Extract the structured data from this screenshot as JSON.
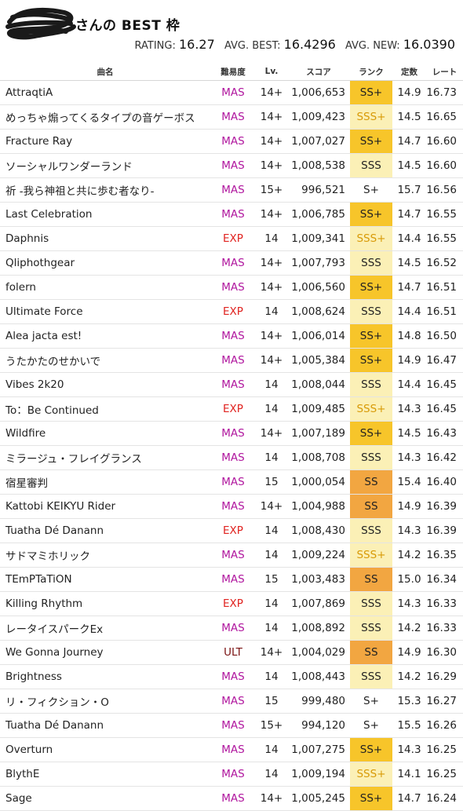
{
  "header": {
    "title": "さんの BEST 枠",
    "rating_label": "RATING:",
    "rating_value": "16.27",
    "avg_best_label": "AVG. BEST:",
    "avg_best_value": "16.4296",
    "avg_new_label": "AVG. NEW:",
    "avg_new_value": "16.0390"
  },
  "table": {
    "columns": [
      "曲名",
      "難易度",
      "Lv.",
      "スコア",
      "ランク",
      "定数",
      "レート"
    ],
    "rows": [
      {
        "name": "AttraqtiA",
        "diff": "MAS",
        "lv": "14+",
        "score": "1,006,653",
        "rank": "SS+",
        "const": "14.9",
        "rate": "16.73"
      },
      {
        "name": "めっちゃ煽ってくるタイプの音ゲーボス",
        "diff": "MAS",
        "lv": "14+",
        "score": "1,009,423",
        "rank": "SSS+",
        "const": "14.5",
        "rate": "16.65"
      },
      {
        "name": "Fracture Ray",
        "diff": "MAS",
        "lv": "14+",
        "score": "1,007,027",
        "rank": "SS+",
        "const": "14.7",
        "rate": "16.60"
      },
      {
        "name": "ソーシャルワンダーランド",
        "diff": "MAS",
        "lv": "14+",
        "score": "1,008,538",
        "rank": "SSS",
        "const": "14.5",
        "rate": "16.60"
      },
      {
        "name": "祈 -我ら神祖と共に歩む者なり-",
        "diff": "MAS",
        "lv": "15+",
        "score": "996,521",
        "rank": "S+",
        "const": "15.7",
        "rate": "16.56"
      },
      {
        "name": "Last Celebration",
        "diff": "MAS",
        "lv": "14+",
        "score": "1,006,785",
        "rank": "SS+",
        "const": "14.7",
        "rate": "16.55"
      },
      {
        "name": "Daphnis",
        "diff": "EXP",
        "lv": "14",
        "score": "1,009,341",
        "rank": "SSS+",
        "const": "14.4",
        "rate": "16.55"
      },
      {
        "name": "Qliphothgear",
        "diff": "MAS",
        "lv": "14+",
        "score": "1,007,793",
        "rank": "SSS",
        "const": "14.5",
        "rate": "16.52"
      },
      {
        "name": "folern",
        "diff": "MAS",
        "lv": "14+",
        "score": "1,006,560",
        "rank": "SS+",
        "const": "14.7",
        "rate": "16.51"
      },
      {
        "name": "Ultimate Force",
        "diff": "EXP",
        "lv": "14",
        "score": "1,008,624",
        "rank": "SSS",
        "const": "14.4",
        "rate": "16.51"
      },
      {
        "name": "Alea jacta est!",
        "diff": "MAS",
        "lv": "14+",
        "score": "1,006,014",
        "rank": "SS+",
        "const": "14.8",
        "rate": "16.50"
      },
      {
        "name": "うたかたのせかいで",
        "diff": "MAS",
        "lv": "14+",
        "score": "1,005,384",
        "rank": "SS+",
        "const": "14.9",
        "rate": "16.47"
      },
      {
        "name": "Vibes 2k20",
        "diff": "MAS",
        "lv": "14",
        "score": "1,008,044",
        "rank": "SSS",
        "const": "14.4",
        "rate": "16.45"
      },
      {
        "name": "To：Be Continued",
        "diff": "EXP",
        "lv": "14",
        "score": "1,009,485",
        "rank": "SSS+",
        "const": "14.3",
        "rate": "16.45"
      },
      {
        "name": "Wildfire",
        "diff": "MAS",
        "lv": "14+",
        "score": "1,007,189",
        "rank": "SS+",
        "const": "14.5",
        "rate": "16.43"
      },
      {
        "name": "ミラージュ・フレイグランス",
        "diff": "MAS",
        "lv": "14",
        "score": "1,008,708",
        "rank": "SSS",
        "const": "14.3",
        "rate": "16.42"
      },
      {
        "name": "宿星審判",
        "diff": "MAS",
        "lv": "15",
        "score": "1,000,054",
        "rank": "SS",
        "const": "15.4",
        "rate": "16.40"
      },
      {
        "name": "Kattobi KEIKYU Rider",
        "diff": "MAS",
        "lv": "14+",
        "score": "1,004,988",
        "rank": "SS",
        "const": "14.9",
        "rate": "16.39"
      },
      {
        "name": "Tuatha Dé Danann",
        "diff": "EXP",
        "lv": "14",
        "score": "1,008,430",
        "rank": "SSS",
        "const": "14.3",
        "rate": "16.39"
      },
      {
        "name": "サドマミホリック",
        "diff": "MAS",
        "lv": "14",
        "score": "1,009,224",
        "rank": "SSS+",
        "const": "14.2",
        "rate": "16.35"
      },
      {
        "name": "TEmPTaTiON",
        "diff": "MAS",
        "lv": "15",
        "score": "1,003,483",
        "rank": "SS",
        "const": "15.0",
        "rate": "16.34"
      },
      {
        "name": "Killing Rhythm",
        "diff": "EXP",
        "lv": "14",
        "score": "1,007,869",
        "rank": "SSS",
        "const": "14.3",
        "rate": "16.33"
      },
      {
        "name": "レータイスパークEx",
        "diff": "MAS",
        "lv": "14",
        "score": "1,008,892",
        "rank": "SSS",
        "const": "14.2",
        "rate": "16.33"
      },
      {
        "name": "We Gonna Journey",
        "diff": "ULT",
        "lv": "14+",
        "score": "1,004,029",
        "rank": "SS",
        "const": "14.9",
        "rate": "16.30"
      },
      {
        "name": "Brightness",
        "diff": "MAS",
        "lv": "14",
        "score": "1,008,443",
        "rank": "SSS",
        "const": "14.2",
        "rate": "16.29"
      },
      {
        "name": "リ・フィクション・O",
        "diff": "MAS",
        "lv": "15",
        "score": "999,480",
        "rank": "S+",
        "const": "15.3",
        "rate": "16.27"
      },
      {
        "name": "Tuatha Dé Danann",
        "diff": "MAS",
        "lv": "15+",
        "score": "994,120",
        "rank": "S+",
        "const": "15.5",
        "rate": "16.26"
      },
      {
        "name": "Overturn",
        "diff": "MAS",
        "lv": "14",
        "score": "1,007,275",
        "rank": "SS+",
        "const": "14.3",
        "rate": "16.25"
      },
      {
        "name": "BlythE",
        "diff": "MAS",
        "lv": "14",
        "score": "1,009,194",
        "rank": "SSS+",
        "const": "14.1",
        "rate": "16.25"
      },
      {
        "name": "Sage",
        "diff": "MAS",
        "lv": "14+",
        "score": "1,005,245",
        "rank": "SS+",
        "const": "14.7",
        "rate": "16.24"
      }
    ]
  },
  "colors": {
    "MAS": "#b0169e",
    "EXP": "#e0221f",
    "ULT": "#7a1212",
    "rank_SS_plus": "#f7c52a",
    "rank_SSS": "#fbf0b6",
    "rank_SS": "#f2a641"
  }
}
